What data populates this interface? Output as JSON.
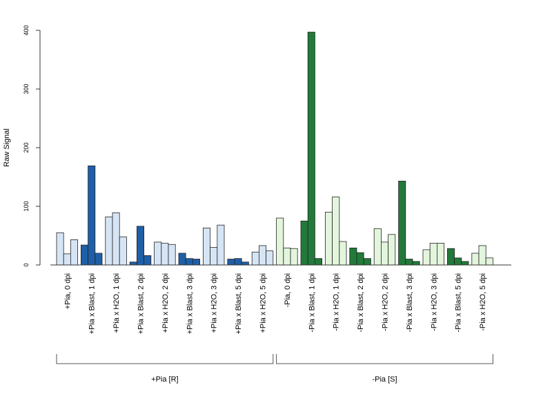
{
  "chart_data": {
    "type": "bar",
    "ylabel": "Raw Signal",
    "ylim": [
      0,
      400
    ],
    "yticks": [
      0,
      100,
      200,
      300,
      400
    ],
    "colors": {
      "light_blue": "#d6e5f5",
      "dark_blue": "#1f5fa8",
      "light_green": "#e3f5dc",
      "dark_green": "#217a3a"
    },
    "categories": [
      {
        "label": "+Pia, 0 dpi",
        "values": [
          55,
          19,
          43
        ],
        "color": "light_blue"
      },
      {
        "label": "+Pia x Blast, 1 dpi",
        "values": [
          34,
          169,
          20
        ],
        "color": "dark_blue"
      },
      {
        "label": "+Pia x H2O, 1 dpi",
        "values": [
          82,
          89,
          48
        ],
        "color": "light_blue"
      },
      {
        "label": "+Pia x Blast, 2 dpi",
        "values": [
          5,
          66,
          16
        ],
        "color": "dark_blue"
      },
      {
        "label": "+Pia x H2O, 2 dpi",
        "values": [
          39,
          37,
          35
        ],
        "color": "light_blue"
      },
      {
        "label": "+Pia x Blast, 3 dpi",
        "values": [
          20,
          11,
          10
        ],
        "color": "dark_blue"
      },
      {
        "label": "+Pia x H2O, 3 dpi",
        "values": [
          63,
          30,
          68
        ],
        "color": "light_blue"
      },
      {
        "label": "+Pia x Blast, 5 dpi",
        "values": [
          10,
          11,
          5
        ],
        "color": "dark_blue"
      },
      {
        "label": "+Pia x H2O, 5 dpi",
        "values": [
          22,
          33,
          24
        ],
        "color": "light_blue"
      },
      {
        "label": "-Pia, 0 dpi",
        "values": [
          80,
          29,
          28
        ],
        "color": "light_green"
      },
      {
        "label": "-Pia x Blast, 1 dpi",
        "values": [
          75,
          397,
          11
        ],
        "color": "dark_green"
      },
      {
        "label": "-Pia x H2O, 1 dpi",
        "values": [
          90,
          116,
          40
        ],
        "color": "light_green"
      },
      {
        "label": "-Pia x Blast, 2 dpi",
        "values": [
          29,
          21,
          11
        ],
        "color": "dark_green"
      },
      {
        "label": "-Pia x H2O, 2 dpi",
        "values": [
          62,
          39,
          52
        ],
        "color": "light_green"
      },
      {
        "label": "-Pia x Blast, 3 dpi",
        "values": [
          143,
          10,
          6
        ],
        "color": "dark_green"
      },
      {
        "label": "-Pia x H2O, 3 dpi",
        "values": [
          26,
          37,
          37
        ],
        "color": "light_green"
      },
      {
        "label": "-Pia x Blast, 5 dpi",
        "values": [
          28,
          12,
          6
        ],
        "color": "dark_green"
      },
      {
        "label": "-Pia x H2O, 5 dpi",
        "values": [
          20,
          33,
          12
        ],
        "color": "light_green"
      }
    ],
    "groups": [
      {
        "label": "+Pia [R]",
        "from": 0,
        "to": 8
      },
      {
        "label": "-Pia [S]",
        "from": 9,
        "to": 17
      }
    ]
  }
}
